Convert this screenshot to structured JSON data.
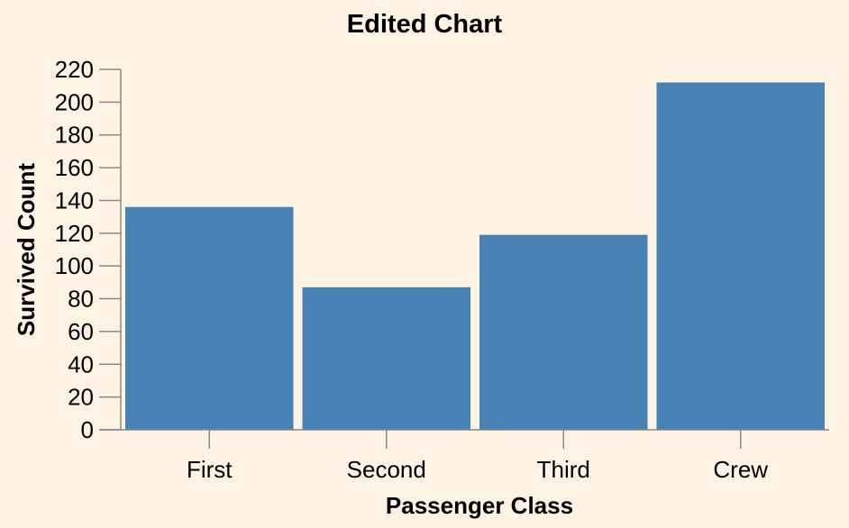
{
  "chart_data": {
    "type": "bar",
    "title": "Edited Chart",
    "xlabel": "Passenger Class",
    "ylabel": "Survived Count",
    "categories": [
      "First",
      "Second",
      "Third",
      "Crew"
    ],
    "values": [
      136,
      87,
      119,
      212
    ],
    "ylim": [
      0,
      220
    ],
    "yticks": [
      "0",
      "20",
      "40",
      "60",
      "80",
      "100",
      "120",
      "140",
      "160",
      "180",
      "200",
      "220"
    ],
    "grid": false,
    "legend": "none",
    "bar_color": "#4682b4",
    "background_color": "#fdf3e3"
  }
}
